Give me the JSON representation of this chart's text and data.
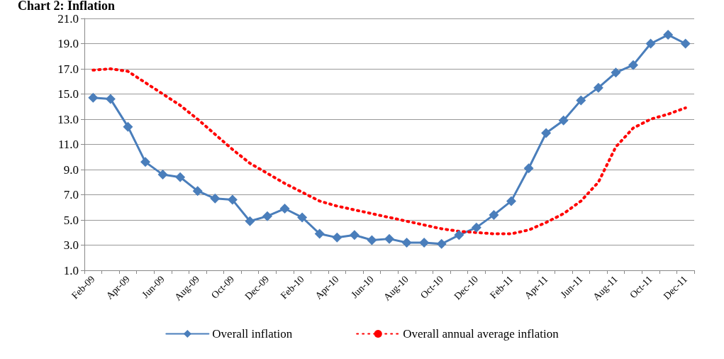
{
  "chart_data": {
    "type": "line",
    "title": "Chart 2: Inflation",
    "categories": [
      "Feb-09",
      null,
      "Apr-09",
      null,
      "Jun-09",
      null,
      "Aug-09",
      null,
      "Oct-09",
      null,
      "Dec-09",
      null,
      "Feb-10",
      null,
      "Apr-10",
      null,
      "Jun-10",
      null,
      "Aug-10",
      null,
      "Oct-10",
      null,
      "Dec-10",
      null,
      "Feb-11",
      null,
      "Apr-11",
      null,
      "Jun-11",
      null,
      "Aug-11",
      null,
      "Oct-11",
      null,
      "Dec-11"
    ],
    "series": [
      {
        "name": "Overall inflation",
        "color": "#4a7ebb",
        "marker": "diamond",
        "line_style": "solid",
        "values": [
          14.7,
          14.6,
          12.4,
          9.6,
          8.6,
          8.4,
          7.3,
          6.7,
          6.6,
          4.9,
          5.3,
          5.9,
          5.2,
          3.9,
          3.6,
          3.8,
          3.4,
          3.5,
          3.2,
          3.2,
          3.1,
          3.8,
          4.4,
          5.4,
          6.5,
          9.1,
          11.9,
          12.9,
          14.5,
          15.5,
          16.7,
          17.3,
          19.0,
          19.7,
          19.0
        ]
      },
      {
        "name": "Overall annual average inflation",
        "color": "#ff0000",
        "marker": "none",
        "line_style": "dotted",
        "values": [
          16.9,
          17.0,
          16.8,
          15.9,
          15.0,
          14.1,
          13.0,
          11.8,
          10.6,
          9.5,
          8.7,
          7.9,
          7.2,
          6.5,
          6.1,
          5.8,
          5.5,
          5.2,
          4.9,
          4.6,
          4.3,
          4.1,
          4.0,
          3.9,
          3.9,
          4.2,
          4.8,
          5.5,
          6.5,
          8.0,
          10.8,
          12.3,
          13.0,
          13.4,
          13.9
        ]
      }
    ],
    "ylim": [
      1,
      21
    ],
    "yticks": [
      {
        "value": 1,
        "label": "1.0"
      },
      {
        "value": 3,
        "label": "3.0"
      },
      {
        "value": 5,
        "label": "5.0"
      },
      {
        "value": 7,
        "label": "7.0"
      },
      {
        "value": 9,
        "label": "9.0"
      },
      {
        "value": 11,
        "label": "11.0"
      },
      {
        "value": 13,
        "label": "13.0"
      },
      {
        "value": 15,
        "label": "15.0"
      },
      {
        "value": 17,
        "label": "17.0"
      },
      {
        "value": 19,
        "label": "19.0"
      },
      {
        "value": 21,
        "label": "21.0"
      }
    ],
    "grid": "y",
    "legend": "bottom"
  }
}
